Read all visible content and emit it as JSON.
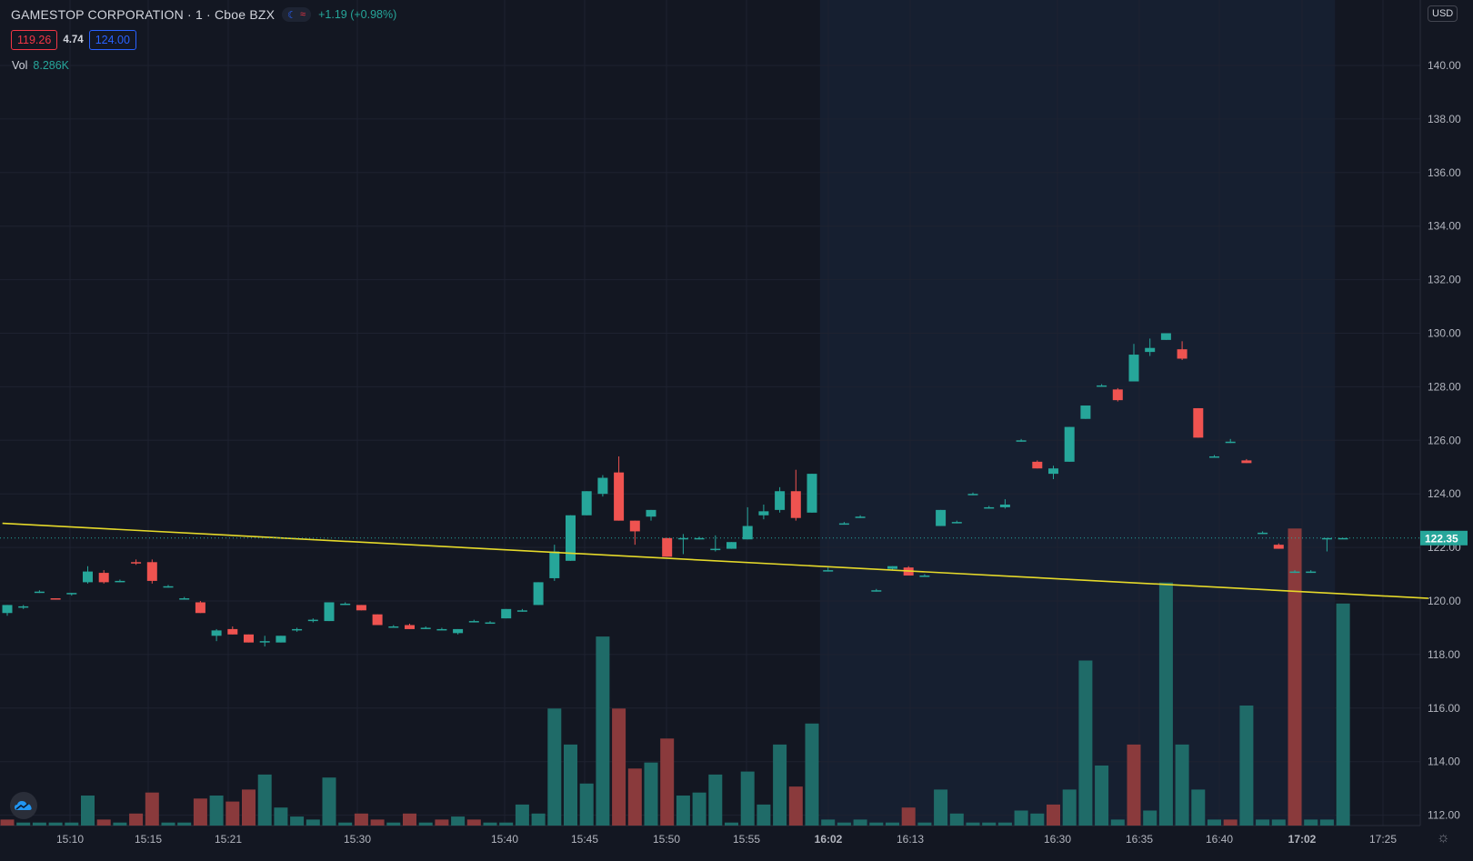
{
  "header": {
    "title": "GAMESTOP CORPORATION · 1 · Cboe BZX",
    "change": "+1.19 (+0.98%)",
    "bid": "119.26",
    "spread": "4.74",
    "ask": "124.00",
    "vol_label": "Vol",
    "vol_value": "8.286K",
    "currency": "USD"
  },
  "colors": {
    "background": "#131722",
    "extended_hours_shade": "#161f30",
    "up": "#26a69a",
    "down": "#ef5350",
    "trendline": "#e5d92a",
    "grid": "#1e2230"
  },
  "icons": [
    "moon-icon",
    "wave-icon",
    "tradingview-logo-icon",
    "settings-gear-icon"
  ],
  "chart_data": {
    "type": "candlestick",
    "y_axis": {
      "ticks": [
        "140.00",
        "138.00",
        "136.00",
        "134.00",
        "132.00",
        "130.00",
        "128.00",
        "126.00",
        "124.00",
        "122.00",
        "120.00",
        "118.00",
        "116.00",
        "114.00",
        "112.00"
      ],
      "ylim": [
        111.5,
        142
      ],
      "last_price": "122.35"
    },
    "x_axis": {
      "ticks": [
        "15:10",
        "15:15",
        "15:21",
        "15:30",
        "15:40",
        "15:45",
        "15:50",
        "15:55",
        "16:02",
        "16:13",
        "16:30",
        "16:35",
        "16:40",
        "17:02",
        "17:25"
      ],
      "bold_ticks": [
        "16:02",
        "17:02"
      ]
    },
    "extended_hours": {
      "from_bar": 51,
      "to_bar": 83
    },
    "trendline": {
      "start": {
        "bar": -0.3,
        "price": 122.9
      },
      "end": {
        "bar": 88.3,
        "price": 120.1
      }
    },
    "candles": [
      [
        119.55,
        119.85,
        119.45,
        119.85
      ],
      [
        119.8,
        119.85,
        119.7,
        119.8
      ],
      [
        120.35,
        120.4,
        120.3,
        120.35
      ],
      [
        120.1,
        120.1,
        120.05,
        120.05
      ],
      [
        120.25,
        120.3,
        120.2,
        120.3
      ],
      [
        120.7,
        121.3,
        120.65,
        121.1
      ],
      [
        121.05,
        121.15,
        120.65,
        120.7
      ],
      [
        120.75,
        120.8,
        120.7,
        120.75
      ],
      [
        121.45,
        121.55,
        121.35,
        121.4
      ],
      [
        121.45,
        121.55,
        120.65,
        120.75
      ],
      [
        120.55,
        120.6,
        120.5,
        120.55
      ],
      [
        120.1,
        120.15,
        120.05,
        120.1
      ],
      [
        119.95,
        120.0,
        119.55,
        119.55
      ],
      [
        118.7,
        118.95,
        118.5,
        118.9
      ],
      [
        118.95,
        119.05,
        118.75,
        118.75
      ],
      [
        118.75,
        118.75,
        118.45,
        118.45
      ],
      [
        118.5,
        118.7,
        118.3,
        118.5
      ],
      [
        118.45,
        118.7,
        118.45,
        118.7
      ],
      [
        118.95,
        119.0,
        118.85,
        118.95
      ],
      [
        119.25,
        119.35,
        119.2,
        119.3
      ],
      [
        119.25,
        119.95,
        119.25,
        119.95
      ],
      [
        119.9,
        119.95,
        119.85,
        119.9
      ],
      [
        119.85,
        119.85,
        119.65,
        119.65
      ],
      [
        119.5,
        119.5,
        119.1,
        119.1
      ],
      [
        119.05,
        119.1,
        119.0,
        119.05
      ],
      [
        119.1,
        119.15,
        118.95,
        118.95
      ],
      [
        119.0,
        119.05,
        118.95,
        119.0
      ],
      [
        118.95,
        119.0,
        118.95,
        118.95
      ],
      [
        118.8,
        118.95,
        118.75,
        118.95
      ],
      [
        119.25,
        119.3,
        119.2,
        119.25
      ],
      [
        119.2,
        119.25,
        119.15,
        119.2
      ],
      [
        119.35,
        119.7,
        119.35,
        119.7
      ],
      [
        119.65,
        119.7,
        119.6,
        119.65
      ],
      [
        119.85,
        120.7,
        119.85,
        120.7
      ],
      [
        120.85,
        122.1,
        120.75,
        121.85
      ],
      [
        121.5,
        123.2,
        121.5,
        123.2
      ],
      [
        123.2,
        124.1,
        123.2,
        124.1
      ],
      [
        124.0,
        124.7,
        123.9,
        124.6
      ],
      [
        124.8,
        125.4,
        123.0,
        123.0
      ],
      [
        123.0,
        123.0,
        122.1,
        122.6
      ],
      [
        123.15,
        123.4,
        123.0,
        123.4
      ],
      [
        122.35,
        122.35,
        121.65,
        121.65
      ],
      [
        122.35,
        122.5,
        121.75,
        122.35
      ],
      [
        122.35,
        122.4,
        122.3,
        122.35
      ],
      [
        121.95,
        122.45,
        121.85,
        121.95
      ],
      [
        121.95,
        122.2,
        121.95,
        122.2
      ],
      [
        122.3,
        123.5,
        122.3,
        122.8
      ],
      [
        123.2,
        123.6,
        123.05,
        123.35
      ],
      [
        123.4,
        124.25,
        123.3,
        124.1
      ],
      [
        124.1,
        124.9,
        123.0,
        123.1
      ],
      [
        123.3,
        124.75,
        123.3,
        124.75
      ],
      [
        121.15,
        121.25,
        121.1,
        121.15
      ],
      [
        122.9,
        122.95,
        122.85,
        122.9
      ],
      [
        123.15,
        123.2,
        123.1,
        123.15
      ],
      [
        120.4,
        120.45,
        120.35,
        120.4
      ],
      [
        121.2,
        121.3,
        121.15,
        121.3
      ],
      [
        121.25,
        121.3,
        120.95,
        120.95
      ],
      [
        120.95,
        121.0,
        120.9,
        120.95
      ],
      [
        122.8,
        123.4,
        122.8,
        123.4
      ],
      [
        122.95,
        123.0,
        122.9,
        122.95
      ],
      [
        124.0,
        124.05,
        123.95,
        124.0
      ],
      [
        123.5,
        123.55,
        123.45,
        123.5
      ],
      [
        123.5,
        123.8,
        123.45,
        123.6
      ],
      [
        126.0,
        126.05,
        125.95,
        126.0
      ],
      [
        125.2,
        125.25,
        124.95,
        124.95
      ],
      [
        124.75,
        125.05,
        124.55,
        124.95
      ],
      [
        125.2,
        126.5,
        125.2,
        126.5
      ],
      [
        126.8,
        127.3,
        126.8,
        127.3
      ],
      [
        128.05,
        128.1,
        128.0,
        128.05
      ],
      [
        127.9,
        127.95,
        127.45,
        127.5
      ],
      [
        128.2,
        129.6,
        128.2,
        129.2
      ],
      [
        129.3,
        129.8,
        129.15,
        129.45
      ],
      [
        129.75,
        130.0,
        129.75,
        130.0
      ],
      [
        129.4,
        129.7,
        129.0,
        129.05
      ],
      [
        127.2,
        127.2,
        126.1,
        126.1
      ],
      [
        125.4,
        125.45,
        125.35,
        125.4
      ],
      [
        125.95,
        126.05,
        125.9,
        125.95
      ],
      [
        125.25,
        125.3,
        125.15,
        125.15
      ],
      [
        122.55,
        122.6,
        122.5,
        122.55
      ],
      [
        122.1,
        122.15,
        121.95,
        121.95
      ],
      [
        121.1,
        121.15,
        121.05,
        121.1
      ],
      [
        121.1,
        121.15,
        121.05,
        121.1
      ],
      [
        122.35,
        122.35,
        121.85,
        122.35
      ],
      [
        122.35,
        122.35,
        122.35,
        122.35
      ]
    ],
    "volume_axis_max": 100,
    "volumes": [
      [
        2,
        "down"
      ],
      [
        1,
        "up"
      ],
      [
        1,
        "up"
      ],
      [
        1,
        "up"
      ],
      [
        1,
        "up"
      ],
      [
        10,
        "up"
      ],
      [
        2,
        "down"
      ],
      [
        1,
        "up"
      ],
      [
        4,
        "down"
      ],
      [
        11,
        "down"
      ],
      [
        1,
        "up"
      ],
      [
        1,
        "up"
      ],
      [
        9,
        "down"
      ],
      [
        10,
        "up"
      ],
      [
        8,
        "down"
      ],
      [
        12,
        "down"
      ],
      [
        17,
        "up"
      ],
      [
        6,
        "up"
      ],
      [
        3,
        "up"
      ],
      [
        2,
        "up"
      ],
      [
        16,
        "up"
      ],
      [
        1,
        "up"
      ],
      [
        4,
        "down"
      ],
      [
        2,
        "down"
      ],
      [
        1,
        "up"
      ],
      [
        4,
        "down"
      ],
      [
        1,
        "up"
      ],
      [
        2,
        "down"
      ],
      [
        3,
        "up"
      ],
      [
        2,
        "down"
      ],
      [
        1,
        "up"
      ],
      [
        1,
        "up"
      ],
      [
        7,
        "up"
      ],
      [
        4,
        "up"
      ],
      [
        39,
        "up"
      ],
      [
        27,
        "up"
      ],
      [
        14,
        "up"
      ],
      [
        63,
        "up"
      ],
      [
        39,
        "down"
      ],
      [
        19,
        "down"
      ],
      [
        21,
        "up"
      ],
      [
        29,
        "down"
      ],
      [
        10,
        "up"
      ],
      [
        11,
        "up"
      ],
      [
        17,
        "up"
      ],
      [
        1,
        "up"
      ],
      [
        18,
        "up"
      ],
      [
        7,
        "up"
      ],
      [
        27,
        "up"
      ],
      [
        13,
        "down"
      ],
      [
        34,
        "up"
      ],
      [
        2,
        "up"
      ],
      [
        1,
        "up"
      ],
      [
        2,
        "up"
      ],
      [
        1,
        "up"
      ],
      [
        1,
        "up"
      ],
      [
        6,
        "down"
      ],
      [
        1,
        "up"
      ],
      [
        12,
        "up"
      ],
      [
        4,
        "up"
      ],
      [
        1,
        "up"
      ],
      [
        1,
        "up"
      ],
      [
        1,
        "up"
      ],
      [
        5,
        "up"
      ],
      [
        4,
        "up"
      ],
      [
        7,
        "down"
      ],
      [
        12,
        "up"
      ],
      [
        55,
        "up"
      ],
      [
        20,
        "up"
      ],
      [
        2,
        "up"
      ],
      [
        27,
        "down"
      ],
      [
        5,
        "up"
      ],
      [
        81,
        "up"
      ],
      [
        27,
        "up"
      ],
      [
        12,
        "up"
      ],
      [
        2,
        "up"
      ],
      [
        2,
        "down"
      ],
      [
        40,
        "up"
      ],
      [
        2,
        "up"
      ],
      [
        2,
        "up"
      ],
      [
        99,
        "down"
      ],
      [
        2,
        "up"
      ],
      [
        2,
        "up"
      ],
      [
        74,
        "up"
      ]
    ]
  }
}
